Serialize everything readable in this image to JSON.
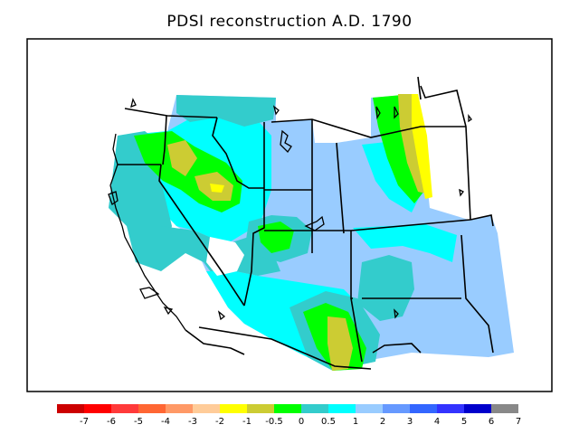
{
  "title": "PDSI reconstruction A.D. 1790",
  "legend": {
    "colors": [
      "#cc0000",
      "#ff0000",
      "#ff3a3a",
      "#ff6633",
      "#ff9966",
      "#ffcc99",
      "#ffff00",
      "#cccc33",
      "#00ff00",
      "#33cccc",
      "#00ffff",
      "#99ccff",
      "#6699ff",
      "#3366ff",
      "#3333ff",
      "#0000cc",
      "#888888"
    ],
    "labels": [
      "-7",
      "-6",
      "-5",
      "-4",
      "-3",
      "-2",
      "-1",
      "-0.5",
      "0",
      "0.5",
      "1",
      "2",
      "3",
      "4",
      "5",
      "6",
      "7"
    ]
  },
  "map": {
    "fill_colors": {
      "lightblue": "#99ccff",
      "cyan": "#00ffff",
      "teal": "#33cccc",
      "green": "#00ff00",
      "olive": "#cccc33",
      "yellow": "#ffff00",
      "white": "#ffffff"
    }
  }
}
